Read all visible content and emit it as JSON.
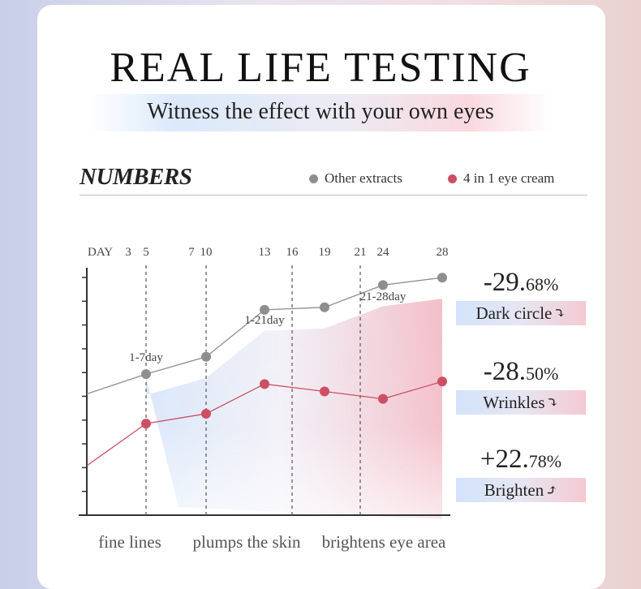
{
  "header": {
    "title": "REAL LIFE TESTING",
    "subtitle": "Witness the effect with your own eyes",
    "section": "NUMBERS"
  },
  "legend": [
    {
      "label": "Other extracts",
      "color": "#8e8e8e"
    },
    {
      "label": "4 in 1 eye cream",
      "color": "#cc4f63"
    }
  ],
  "chart_data": {
    "type": "line",
    "x_prefix": "DAY",
    "x": [
      3,
      5,
      7,
      10,
      13,
      16,
      19,
      21,
      24,
      28
    ],
    "series": [
      {
        "name": "Other extracts",
        "color": "#8e8e8e",
        "x": [
          5,
          10,
          13,
          19,
          24,
          28
        ],
        "values": [
          57,
          64,
          83,
          84,
          93,
          96
        ]
      },
      {
        "name": "4 in 1 eye cream",
        "color": "#cc4f63",
        "x": [
          5,
          10,
          13,
          19,
          24,
          28
        ],
        "values": [
          37,
          41,
          53,
          50,
          47,
          54
        ]
      }
    ],
    "series_start": [
      49,
      20
    ],
    "ylim": [
      0,
      100
    ],
    "y_ticks": 11,
    "phase_labels": [
      {
        "label": "1-7day",
        "x": 5
      },
      {
        "label": "1-21day",
        "x": 13
      },
      {
        "label": "21-28day",
        "x": 24
      }
    ],
    "phase_dividers": [
      5,
      10,
      16,
      21
    ],
    "bottom_labels": [
      "fine lines",
      "plumps the skin",
      "brightens eye area"
    ]
  },
  "results": [
    {
      "value_main": "-29.",
      "value_small": "68%",
      "label": "Dark circle",
      "arrow": "⤵",
      "arrow_name": "arrow-down-icon"
    },
    {
      "value_main": "-28.",
      "value_small": "50%",
      "label": "Wrinkles",
      "arrow": "⤵",
      "arrow_name": "arrow-down-icon"
    },
    {
      "value_main": "+22.",
      "value_small": "78%",
      "label": "Brighten",
      "arrow": "⤴",
      "arrow_name": "arrow-up-icon"
    }
  ]
}
